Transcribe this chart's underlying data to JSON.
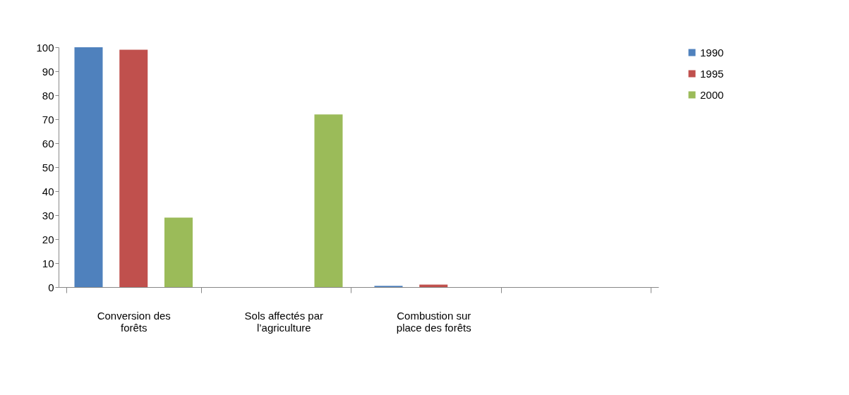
{
  "chart_data": {
    "type": "bar",
    "categories": [
      "Conversion des\nforêts",
      "Sols affectés par\nl’agriculture",
      "Combustion sur\nplace des forêts",
      null
    ],
    "series": [
      {
        "name": "1990",
        "color": "#4f81bd",
        "values": [
          100,
          0,
          0.5,
          null
        ]
      },
      {
        "name": "1995",
        "color": "#c0504d",
        "values": [
          99,
          0,
          1,
          null
        ]
      },
      {
        "name": "2000",
        "color": "#9bbb59",
        "values": [
          29,
          72,
          0,
          null
        ]
      }
    ],
    "ylim": [
      0,
      100
    ],
    "yticks": [
      0,
      10,
      20,
      30,
      40,
      50,
      60,
      70,
      80,
      90,
      100
    ],
    "grid": false,
    "legend": "right"
  }
}
